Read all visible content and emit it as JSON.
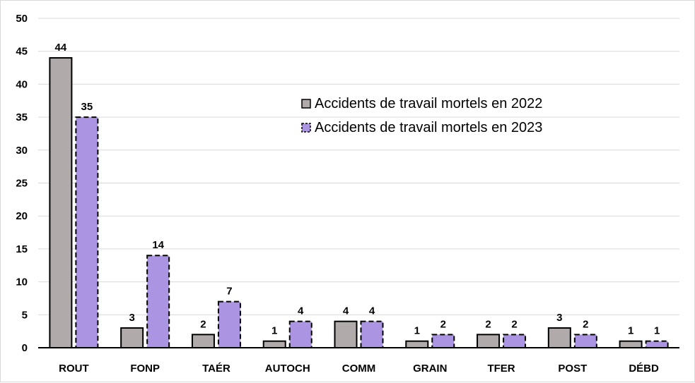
{
  "chart_data": {
    "type": "bar",
    "categories": [
      "ROUT",
      "FONP",
      "TAÉR",
      "AUTOCH",
      "COMM",
      "GRAIN",
      "TFER",
      "POST",
      "DÉBD"
    ],
    "series": [
      {
        "name": "Accidents de travail mortels en 2022",
        "values": [
          44,
          3,
          2,
          1,
          4,
          1,
          2,
          3,
          1
        ],
        "color": "#b0aaaa",
        "border": "solid"
      },
      {
        "name": "Accidents de travail mortels en 2023",
        "values": [
          35,
          14,
          7,
          4,
          4,
          2,
          2,
          2,
          1
        ],
        "color": "#ab94e2",
        "border": "dashed"
      }
    ],
    "ylim": [
      0,
      50
    ],
    "yticks": [
      0,
      5,
      10,
      15,
      20,
      25,
      30,
      35,
      40,
      45,
      50
    ],
    "grid": true,
    "legend_position": "upper-right-center",
    "data_labels": true,
    "title": "",
    "xlabel": "",
    "ylabel": ""
  }
}
